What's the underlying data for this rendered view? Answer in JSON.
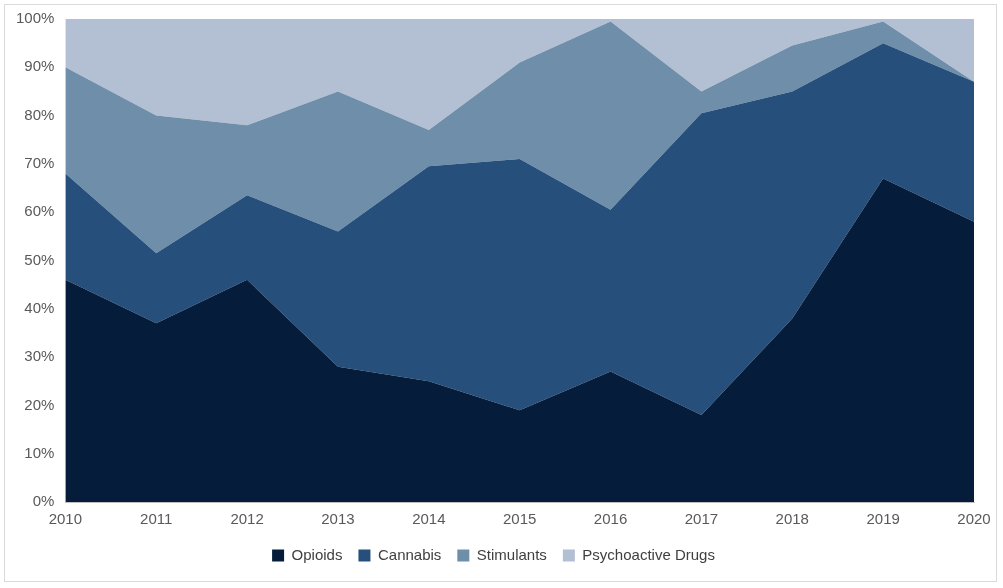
{
  "chart_data": {
    "type": "area",
    "stacked": true,
    "x": [
      2010,
      2011,
      2012,
      2013,
      2014,
      2015,
      2016,
      2017,
      2018,
      2019,
      2020
    ],
    "xlim": [
      2010,
      2020
    ],
    "xticks": [
      2010,
      2011,
      2012,
      2013,
      2014,
      2015,
      2016,
      2017,
      2018,
      2019,
      2020
    ],
    "ylim": [
      0,
      100
    ],
    "yticks": [
      {
        "value": 0,
        "label": "0%"
      },
      {
        "value": 10,
        "label": "10%"
      },
      {
        "value": 20,
        "label": "20%"
      },
      {
        "value": 30,
        "label": "30%"
      },
      {
        "value": 40,
        "label": "40%"
      },
      {
        "value": 50,
        "label": "50%"
      },
      {
        "value": 60,
        "label": "60%"
      },
      {
        "value": 70,
        "label": "70%"
      },
      {
        "value": 80,
        "label": "80%"
      },
      {
        "value": 90,
        "label": "90%"
      },
      {
        "value": 100,
        "label": "100%"
      }
    ],
    "legend": "bottom",
    "series": [
      {
        "name": "Opioids",
        "color": "#051c3a",
        "values": [
          46,
          37,
          46,
          28,
          25,
          19,
          27,
          18,
          38,
          67,
          58
        ]
      },
      {
        "name": "Cannabis",
        "color": "#264f7b",
        "values": [
          22,
          14.5,
          17.5,
          28,
          44.5,
          52,
          33.5,
          62.5,
          47,
          28,
          29
        ]
      },
      {
        "name": "Stimulants",
        "color": "#6e8ea9",
        "values": [
          22,
          28.5,
          14.5,
          29,
          7.5,
          20,
          39,
          4.5,
          9.5,
          4.5,
          0
        ]
      },
      {
        "name": "Psychoactive Drugs",
        "color": "#b3bfd3",
        "values": [
          10,
          20,
          22,
          15,
          23,
          9,
          0.5,
          15,
          5.5,
          0.5,
          13
        ]
      }
    ]
  }
}
